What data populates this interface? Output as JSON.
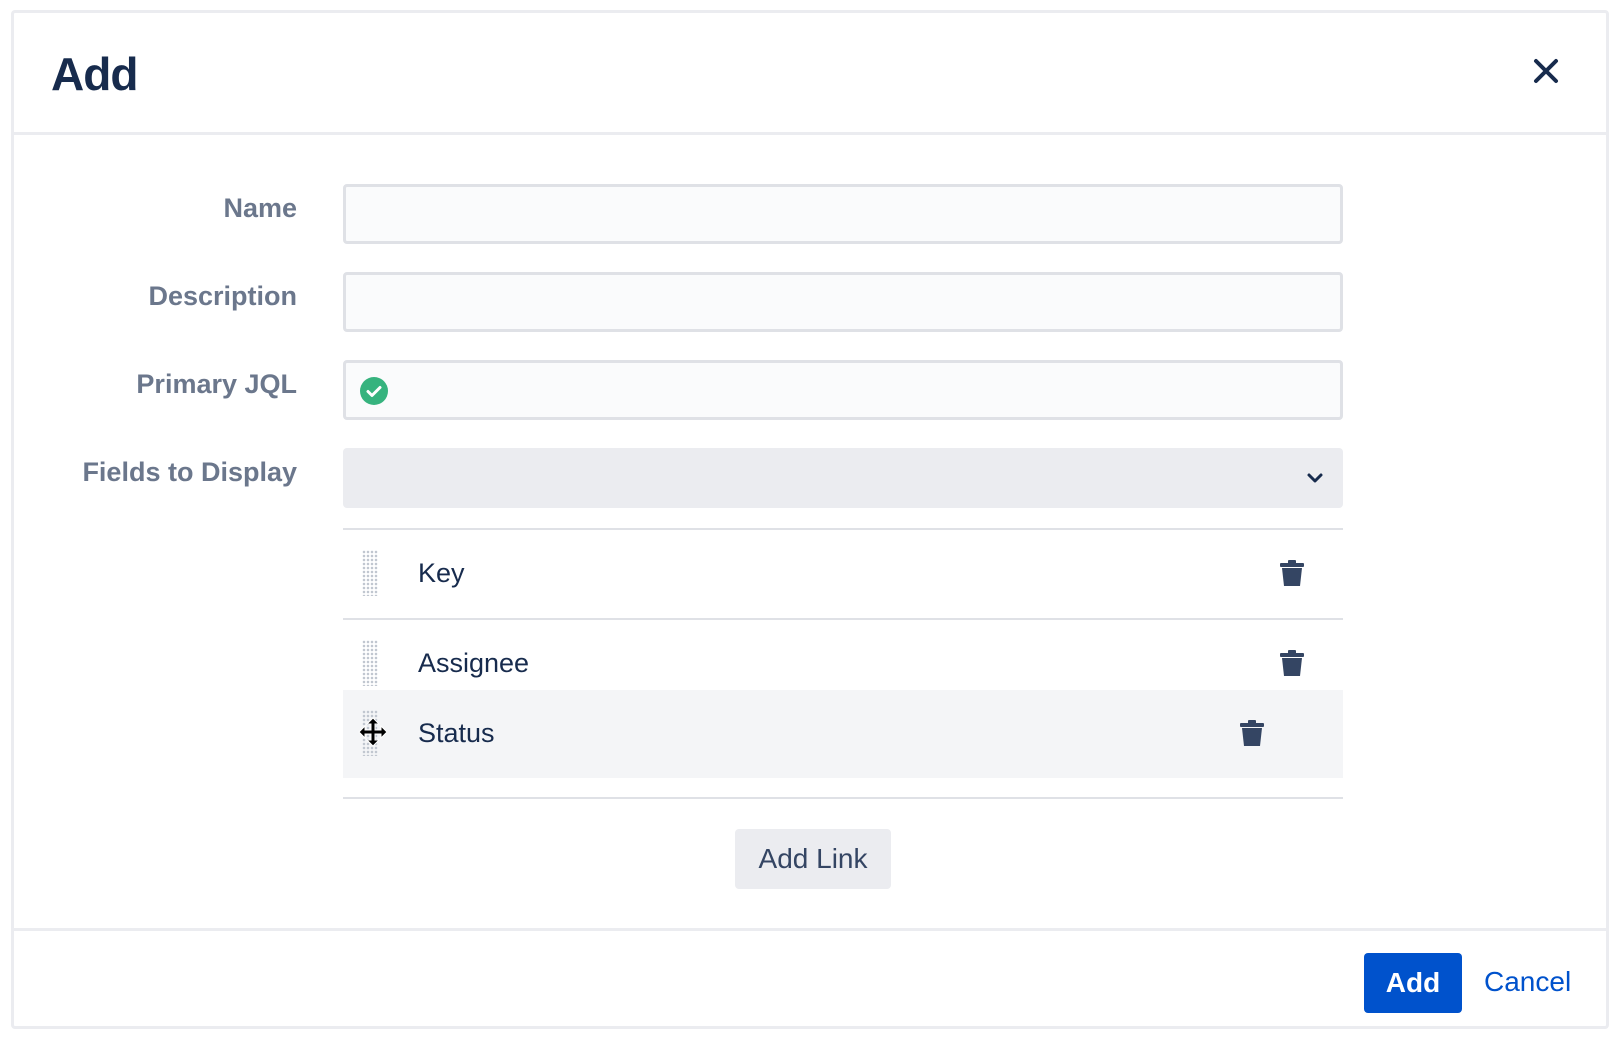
{
  "dialog": {
    "title": "Add",
    "close_icon": "close-icon"
  },
  "form": {
    "name": {
      "label": "Name",
      "value": ""
    },
    "description": {
      "label": "Description",
      "value": ""
    },
    "primary_jql": {
      "label": "Primary JQL",
      "value": "",
      "status_icon": "check-circle-icon",
      "status_color": "#36b37e"
    },
    "fields_to_display": {
      "label": "Fields to Display",
      "value": ""
    }
  },
  "fields": [
    {
      "label": "Key"
    },
    {
      "label": "Assignee"
    },
    {
      "label": "Status",
      "dragging": true
    }
  ],
  "add_link_label": "Add Link",
  "footer": {
    "add_label": "Add",
    "cancel_label": "Cancel"
  },
  "colors": {
    "primary": "#0052cc",
    "text": "#172b4d",
    "label": "#6b778c"
  }
}
